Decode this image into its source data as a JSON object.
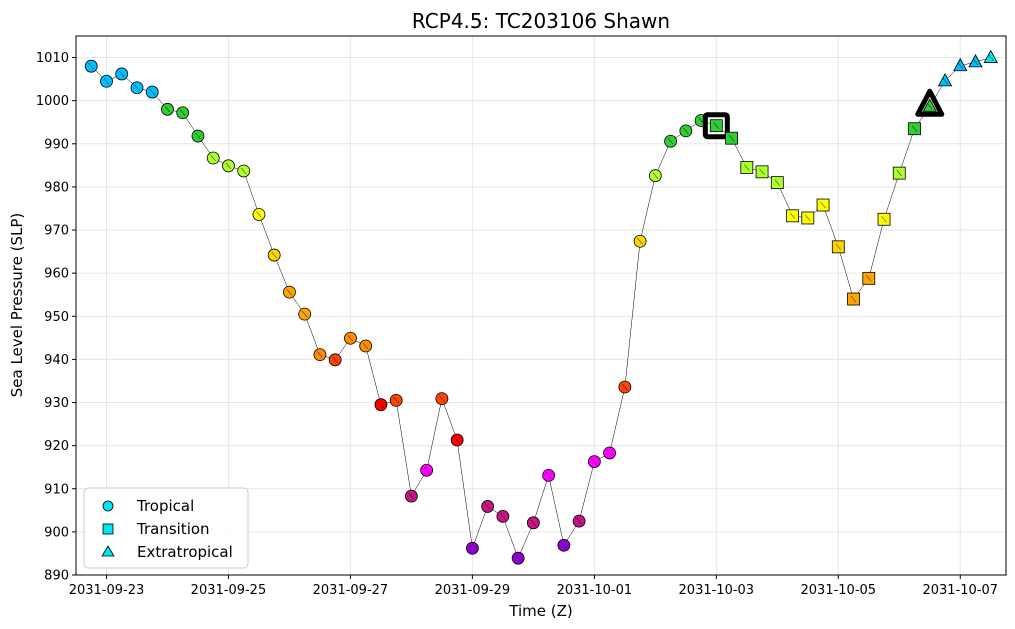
{
  "chart_data": {
    "type": "scatter",
    "title": "RCP4.5: TC203106 Shawn",
    "xlabel": "Time (Z)",
    "ylabel": "Sea Level Pressure (SLP)",
    "xlim": [
      "2031-09-22T12:00",
      "2031-10-07T18:00"
    ],
    "ylim": [
      890,
      1015
    ],
    "yticks": [
      890,
      900,
      910,
      920,
      930,
      940,
      950,
      960,
      970,
      980,
      990,
      1000,
      1010
    ],
    "xticks": [
      "2031-09-23",
      "2031-09-25",
      "2031-09-27",
      "2031-09-29",
      "2031-10-01",
      "2031-10-03",
      "2031-10-05",
      "2031-10-07"
    ],
    "grid": true,
    "legend_position": "lower-left",
    "legend": [
      {
        "label": "Tropical",
        "marker": "circle",
        "color": "#00e5ee"
      },
      {
        "label": "Transition",
        "marker": "square",
        "color": "#00e5ee"
      },
      {
        "label": "Extratropical",
        "marker": "triangle",
        "color": "#00e5ee"
      }
    ],
    "points": [
      {
        "time": "2031-09-22T18:00",
        "slp": 1008,
        "marker": "circle",
        "color": "#00bfff"
      },
      {
        "time": "2031-09-23T00:00",
        "slp": 1004.5,
        "marker": "circle",
        "color": "#00bfff"
      },
      {
        "time": "2031-09-23T06:00",
        "slp": 1006.2,
        "marker": "circle",
        "color": "#00bfff"
      },
      {
        "time": "2031-09-23T12:00",
        "slp": 1003,
        "marker": "circle",
        "color": "#00bfff"
      },
      {
        "time": "2031-09-23T18:00",
        "slp": 1002,
        "marker": "circle",
        "color": "#00bfff"
      },
      {
        "time": "2031-09-24T00:00",
        "slp": 998,
        "marker": "circle",
        "color": "#32cd32"
      },
      {
        "time": "2031-09-24T06:00",
        "slp": 997.2,
        "marker": "circle",
        "color": "#32cd32"
      },
      {
        "time": "2031-09-24T12:00",
        "slp": 991.8,
        "marker": "circle",
        "color": "#32cd32"
      },
      {
        "time": "2031-09-24T18:00",
        "slp": 986.7,
        "marker": "circle",
        "color": "#adff2f"
      },
      {
        "time": "2031-09-25T00:00",
        "slp": 984.9,
        "marker": "circle",
        "color": "#adff2f"
      },
      {
        "time": "2031-09-25T06:00",
        "slp": 983.7,
        "marker": "circle",
        "color": "#adff2f"
      },
      {
        "time": "2031-09-25T12:00",
        "slp": 973.6,
        "marker": "circle",
        "color": "#ffff00"
      },
      {
        "time": "2031-09-25T18:00",
        "slp": 964.2,
        "marker": "circle",
        "color": "#ffd700"
      },
      {
        "time": "2031-09-26T00:00",
        "slp": 955.6,
        "marker": "circle",
        "color": "#ffa500"
      },
      {
        "time": "2031-09-26T06:00",
        "slp": 950.5,
        "marker": "circle",
        "color": "#ffa500"
      },
      {
        "time": "2031-09-26T12:00",
        "slp": 941.1,
        "marker": "circle",
        "color": "#ff8c00"
      },
      {
        "time": "2031-09-26T18:00",
        "slp": 939.9,
        "marker": "circle",
        "color": "#ff4500"
      },
      {
        "time": "2031-09-27T00:00",
        "slp": 944.9,
        "marker": "circle",
        "color": "#ff8c00"
      },
      {
        "time": "2031-09-27T06:00",
        "slp": 943.1,
        "marker": "circle",
        "color": "#ff8c00"
      },
      {
        "time": "2031-09-27T12:00",
        "slp": 929.5,
        "marker": "circle",
        "color": "#ff0000"
      },
      {
        "time": "2031-09-27T18:00",
        "slp": 930.5,
        "marker": "circle",
        "color": "#ff4500"
      },
      {
        "time": "2031-09-28T00:00",
        "slp": 908.3,
        "marker": "circle",
        "color": "#c71585"
      },
      {
        "time": "2031-09-28T06:00",
        "slp": 914.3,
        "marker": "circle",
        "color": "#ff00ff"
      },
      {
        "time": "2031-09-28T12:00",
        "slp": 930.9,
        "marker": "circle",
        "color": "#ff4500"
      },
      {
        "time": "2031-09-28T18:00",
        "slp": 921.3,
        "marker": "circle",
        "color": "#ff0000"
      },
      {
        "time": "2031-09-29T00:00",
        "slp": 896.2,
        "marker": "circle",
        "color": "#9400d3"
      },
      {
        "time": "2031-09-29T06:00",
        "slp": 905.9,
        "marker": "circle",
        "color": "#c71585"
      },
      {
        "time": "2031-09-29T12:00",
        "slp": 903.6,
        "marker": "circle",
        "color": "#c71585"
      },
      {
        "time": "2031-09-29T18:00",
        "slp": 893.9,
        "marker": "circle",
        "color": "#9400d3"
      },
      {
        "time": "2031-09-30T00:00",
        "slp": 902.1,
        "marker": "circle",
        "color": "#c71585"
      },
      {
        "time": "2031-09-30T06:00",
        "slp": 913.1,
        "marker": "circle",
        "color": "#ff00ff"
      },
      {
        "time": "2031-09-30T12:00",
        "slp": 896.9,
        "marker": "circle",
        "color": "#9400d3"
      },
      {
        "time": "2031-09-30T18:00",
        "slp": 902.5,
        "marker": "circle",
        "color": "#c71585"
      },
      {
        "time": "2031-10-01T00:00",
        "slp": 916.3,
        "marker": "circle",
        "color": "#ff00ff"
      },
      {
        "time": "2031-10-01T06:00",
        "slp": 918.3,
        "marker": "circle",
        "color": "#ff00ff"
      },
      {
        "time": "2031-10-01T12:00",
        "slp": 933.6,
        "marker": "circle",
        "color": "#ff4500"
      },
      {
        "time": "2031-10-01T18:00",
        "slp": 967.4,
        "marker": "circle",
        "color": "#ffd700"
      },
      {
        "time": "2031-10-02T00:00",
        "slp": 982.6,
        "marker": "circle",
        "color": "#adff2f"
      },
      {
        "time": "2031-10-02T06:00",
        "slp": 990.6,
        "marker": "circle",
        "color": "#32cd32"
      },
      {
        "time": "2031-10-02T12:00",
        "slp": 993,
        "marker": "circle",
        "color": "#32cd32"
      },
      {
        "time": "2031-10-02T18:00",
        "slp": 995.4,
        "marker": "circle",
        "color": "#32cd32"
      },
      {
        "time": "2031-10-03T00:00",
        "slp": 994.2,
        "marker": "square",
        "color": "#32cd32",
        "highlight": true
      },
      {
        "time": "2031-10-03T06:00",
        "slp": 991.3,
        "marker": "square",
        "color": "#32cd32"
      },
      {
        "time": "2031-10-03T12:00",
        "slp": 984.5,
        "marker": "square",
        "color": "#adff2f"
      },
      {
        "time": "2031-10-03T18:00",
        "slp": 983.5,
        "marker": "square",
        "color": "#adff2f"
      },
      {
        "time": "2031-10-04T00:00",
        "slp": 981,
        "marker": "square",
        "color": "#adff2f"
      },
      {
        "time": "2031-10-04T06:00",
        "slp": 973.3,
        "marker": "square",
        "color": "#ffff00"
      },
      {
        "time": "2031-10-04T12:00",
        "slp": 972.8,
        "marker": "square",
        "color": "#ffff00"
      },
      {
        "time": "2031-10-04T18:00",
        "slp": 975.8,
        "marker": "square",
        "color": "#ffff00"
      },
      {
        "time": "2031-10-05T00:00",
        "slp": 966.1,
        "marker": "square",
        "color": "#ffd700"
      },
      {
        "time": "2031-10-05T06:00",
        "slp": 954,
        "marker": "square",
        "color": "#ffa500"
      },
      {
        "time": "2031-10-05T12:00",
        "slp": 958.8,
        "marker": "square",
        "color": "#ffa500"
      },
      {
        "time": "2031-10-05T18:00",
        "slp": 972.5,
        "marker": "square",
        "color": "#ffff00"
      },
      {
        "time": "2031-10-06T00:00",
        "slp": 983.2,
        "marker": "square",
        "color": "#adff2f"
      },
      {
        "time": "2031-10-06T06:00",
        "slp": 993.5,
        "marker": "square",
        "color": "#32cd32"
      },
      {
        "time": "2031-10-06T12:00",
        "slp": 998.7,
        "marker": "triangle",
        "color": "#32cd32",
        "highlight": true
      },
      {
        "time": "2031-10-06T18:00",
        "slp": 1004.6,
        "marker": "triangle",
        "color": "#00bfff"
      },
      {
        "time": "2031-10-07T00:00",
        "slp": 1008.1,
        "marker": "triangle",
        "color": "#00bfff"
      },
      {
        "time": "2031-10-07T06:00",
        "slp": 1009,
        "marker": "triangle",
        "color": "#00bfff"
      },
      {
        "time": "2031-10-07T12:00",
        "slp": 1010,
        "marker": "triangle",
        "color": "#00e5ee"
      }
    ]
  }
}
